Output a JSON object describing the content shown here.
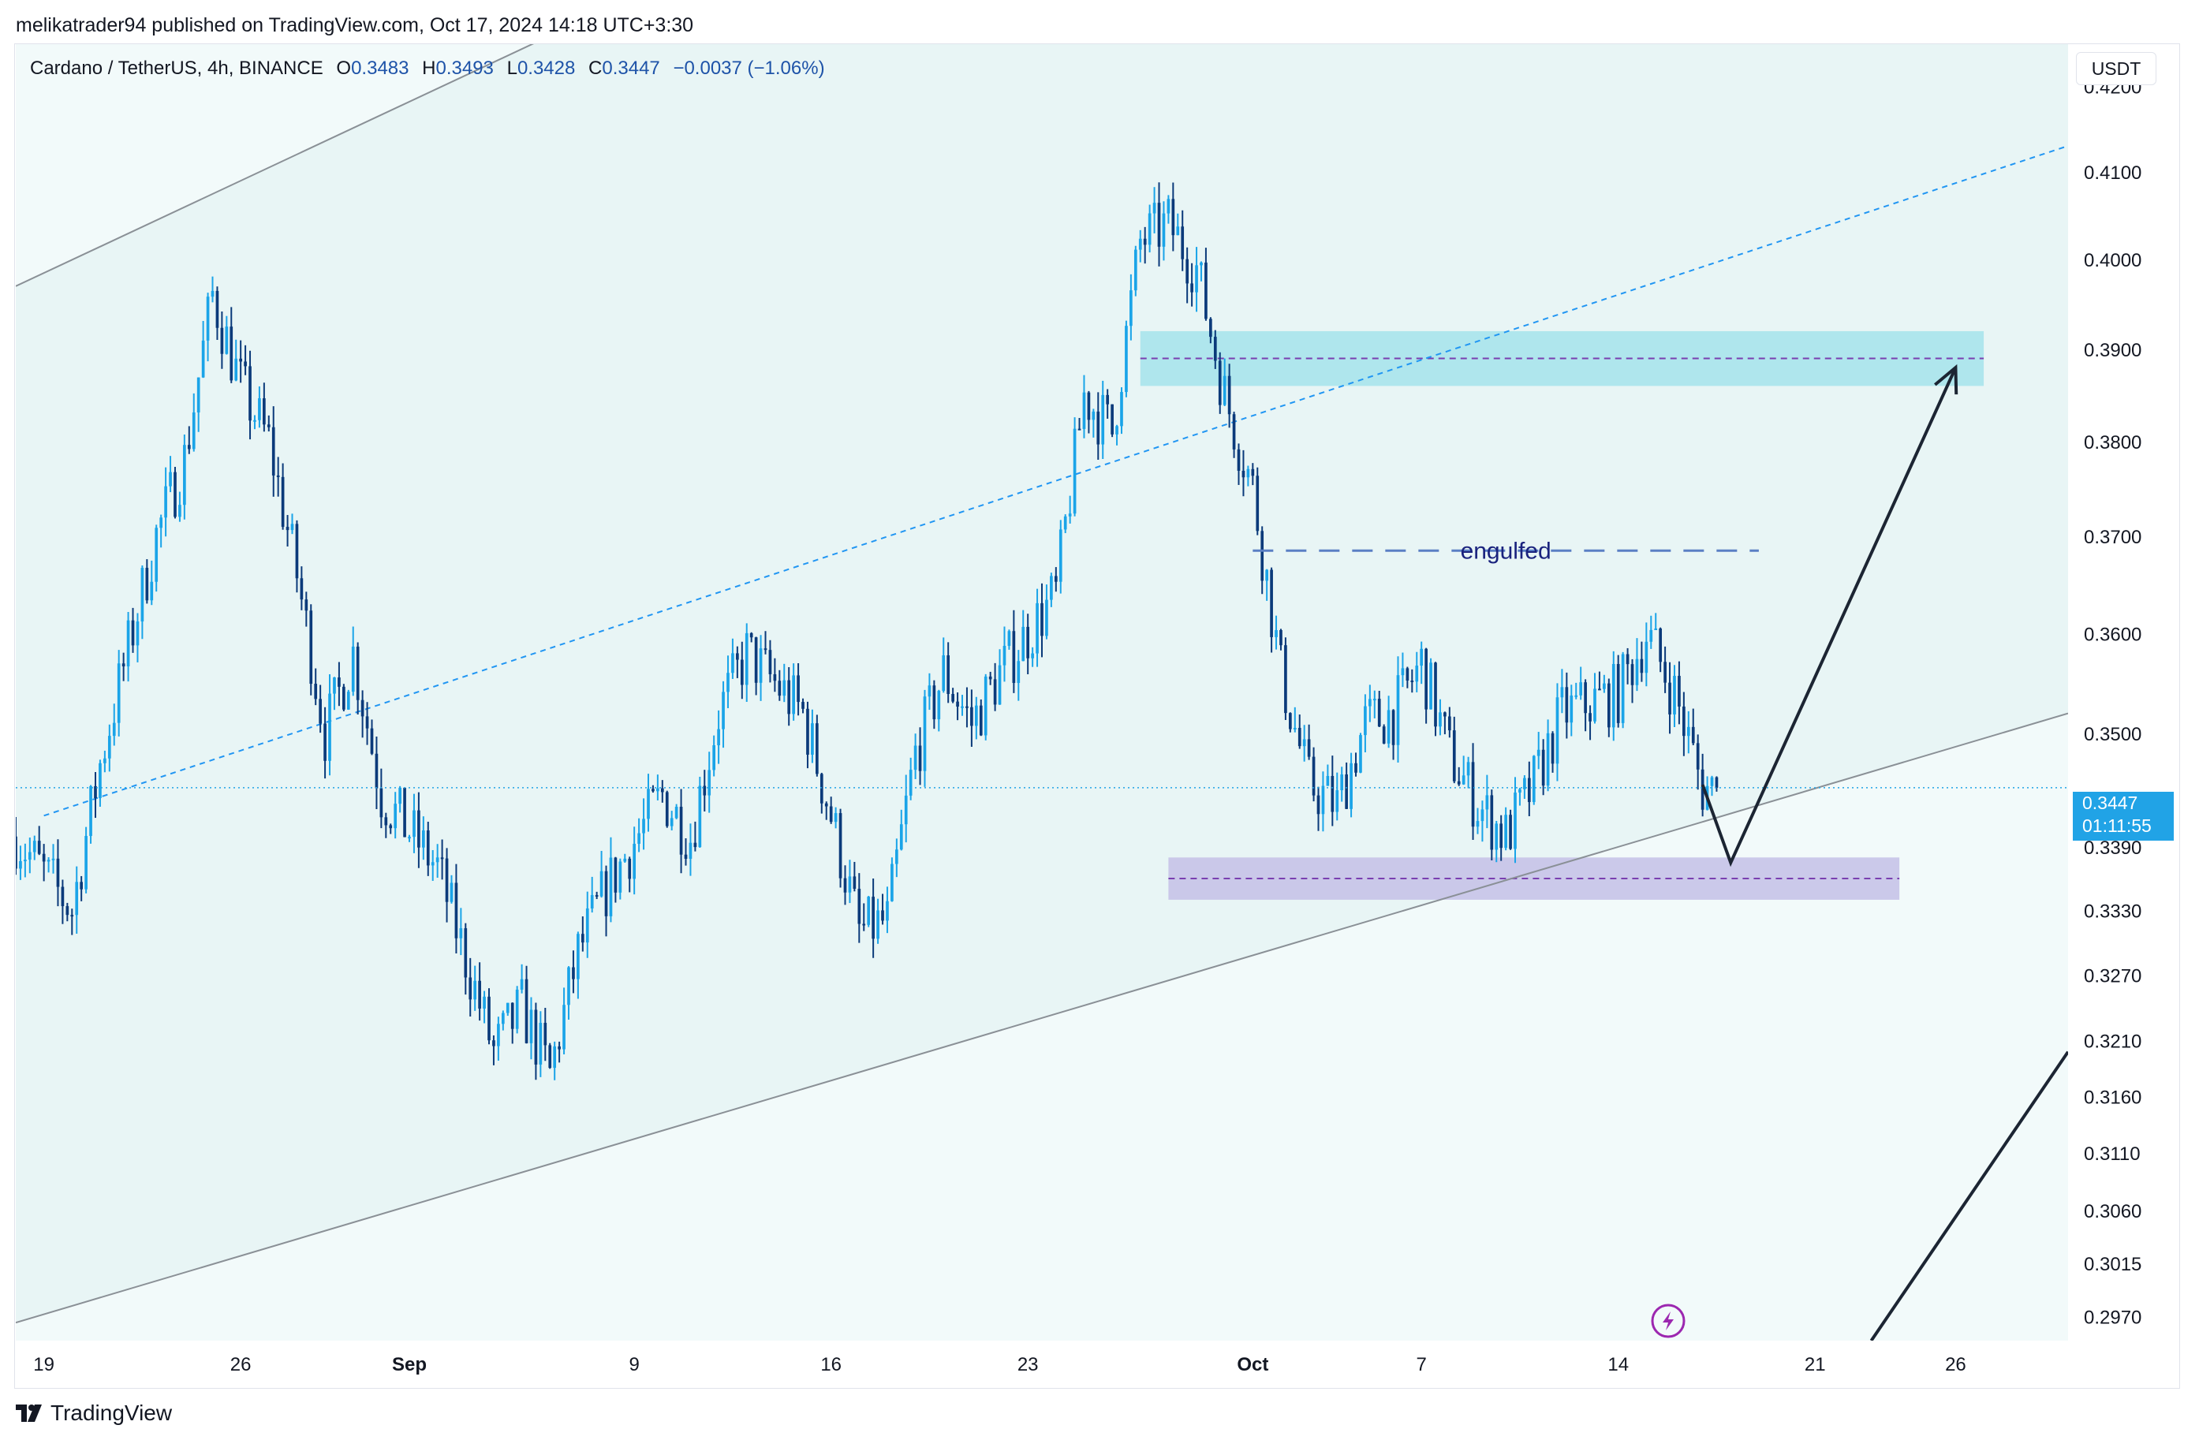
{
  "header": {
    "publisher_line": "melikatrader94 published on TradingView.com, Oct 17, 2024 14:18 UTC+3:30"
  },
  "legend": {
    "symbol": "Cardano / TetherUS, 4h, BINANCE",
    "o_label": "O",
    "o_value": "0.3483",
    "h_label": "H",
    "h_value": "0.3493",
    "l_label": "L",
    "l_value": "0.3428",
    "c_label": "C",
    "c_value": "0.3447",
    "change": "−0.0037 (−1.06%)"
  },
  "currency_button": "USDT",
  "last_price": {
    "value": "0.3447",
    "countdown": "01:11:55"
  },
  "annotation_text": "engulfed",
  "footer": {
    "brand": "TradingView"
  },
  "colors": {
    "up": "#1aa4e8",
    "down": "#0b3a7a",
    "channel_fill": "#e8f5f5",
    "resistance_zone": "#a9e4ec",
    "support_zone": "#c7c3e8",
    "dashed_mid": "#7a3fb0",
    "trend_dash": "#2196f3"
  },
  "icons": [
    "lightning-icon",
    "tradingview-logo-icon"
  ],
  "chart_data": {
    "type": "candlestick",
    "title": "Cardano / TetherUS, 4h, BINANCE",
    "price_scale": "log",
    "y_ticks": [
      "0.4200",
      "0.4100",
      "0.4000",
      "0.3900",
      "0.3800",
      "0.3700",
      "0.3600",
      "0.3500",
      "0.3390",
      "0.3330",
      "0.3270",
      "0.3210",
      "0.3160",
      "0.3110",
      "0.3060",
      "0.3015",
      "0.2970"
    ],
    "x_ticks": [
      "19",
      "26",
      "Sep",
      "9",
      "16",
      "23",
      "Oct",
      "7",
      "14",
      "21",
      "26"
    ],
    "x_tick_dates": [
      "2024-08-19",
      "2024-08-26",
      "2024-09-01",
      "2024-09-09",
      "2024-09-16",
      "2024-09-23",
      "2024-10-01",
      "2024-10-07",
      "2024-10-14",
      "2024-10-21",
      "2024-10-26"
    ],
    "x_range": [
      "2024-08-18",
      "2024-10-30"
    ],
    "y_range": [
      0.295,
      0.425
    ],
    "interval": "4h",
    "last_close": 0.3447,
    "price_path": [
      [
        "2024-08-18",
        0.34
      ],
      [
        "2024-08-20",
        0.333
      ],
      [
        "2024-08-21",
        0.347
      ],
      [
        "2024-08-23",
        0.37
      ],
      [
        "2024-08-24",
        0.378
      ],
      [
        "2024-08-25",
        0.396
      ],
      [
        "2024-08-26",
        0.386
      ],
      [
        "2024-08-27",
        0.38
      ],
      [
        "2024-08-28",
        0.366
      ],
      [
        "2024-08-29",
        0.35
      ],
      [
        "2024-08-30",
        0.358
      ],
      [
        "2024-08-31",
        0.344
      ],
      [
        "2024-09-02",
        0.337
      ],
      [
        "2024-09-04",
        0.32
      ],
      [
        "2024-09-05",
        0.324
      ],
      [
        "2024-09-06",
        0.318
      ],
      [
        "2024-09-07",
        0.329
      ],
      [
        "2024-09-08",
        0.335
      ],
      [
        "2024-09-10",
        0.344
      ],
      [
        "2024-09-11",
        0.34
      ],
      [
        "2024-09-12",
        0.352
      ],
      [
        "2024-09-13",
        0.358
      ],
      [
        "2024-09-15",
        0.352
      ],
      [
        "2024-09-16",
        0.342
      ],
      [
        "2024-09-17",
        0.331
      ],
      [
        "2024-09-18",
        0.332
      ],
      [
        "2024-09-19",
        0.348
      ],
      [
        "2024-09-20",
        0.356
      ],
      [
        "2024-09-21",
        0.351
      ],
      [
        "2024-09-22",
        0.356
      ],
      [
        "2024-09-24",
        0.364
      ],
      [
        "2024-09-25",
        0.385
      ],
      [
        "2024-09-26",
        0.381
      ],
      [
        "2024-09-27",
        0.402
      ],
      [
        "2024-09-28",
        0.404
      ],
      [
        "2024-09-29",
        0.399
      ],
      [
        "2024-09-30",
        0.385
      ],
      [
        "2024-10-01",
        0.375
      ],
      [
        "2024-10-02",
        0.356
      ],
      [
        "2024-10-03",
        0.345
      ],
      [
        "2024-10-04",
        0.343
      ],
      [
        "2024-10-05",
        0.351
      ],
      [
        "2024-10-06",
        0.352
      ],
      [
        "2024-10-07",
        0.357
      ],
      [
        "2024-10-08",
        0.348
      ],
      [
        "2024-10-09",
        0.343
      ],
      [
        "2024-10-10",
        0.34
      ],
      [
        "2024-10-11",
        0.345
      ],
      [
        "2024-10-12",
        0.352
      ],
      [
        "2024-10-13",
        0.353
      ],
      [
        "2024-10-14",
        0.354
      ],
      [
        "2024-10-15",
        0.36
      ],
      [
        "2024-10-16",
        0.354
      ],
      [
        "2024-10-17",
        0.3447
      ]
    ],
    "channel": {
      "upper_line": [
        [
          "2024-08-18",
          0.397
        ],
        [
          "2024-09-06",
          0.426
        ]
      ],
      "lower_line": [
        [
          "2024-08-18",
          0.2965
        ],
        [
          "2024-10-30",
          0.352
        ]
      ],
      "midline_dashed": [
        [
          "2024-08-19",
          0.342
        ],
        [
          "2024-10-30",
          0.413
        ]
      ]
    },
    "zones": [
      {
        "name": "resistance",
        "from": "2024-09-27",
        "to": "2024-10-27",
        "low": 0.386,
        "high": 0.392,
        "mid": 0.389
      },
      {
        "name": "support",
        "from": "2024-09-28",
        "to": "2024-10-24",
        "low": 0.334,
        "high": 0.338,
        "mid": 0.336
      }
    ],
    "engulfed_line": {
      "from": "2024-10-01",
      "to": "2024-10-19",
      "price": 0.3685,
      "label": "engulfed"
    },
    "projection": [
      [
        "2024-10-17",
        0.345
      ],
      [
        "2024-10-18",
        0.3375
      ],
      [
        "2024-10-26",
        0.388
      ]
    ],
    "trend_arrow": [
      [
        "2024-10-23",
        0.295
      ],
      [
        "2024-10-30",
        0.32
      ]
    ]
  }
}
